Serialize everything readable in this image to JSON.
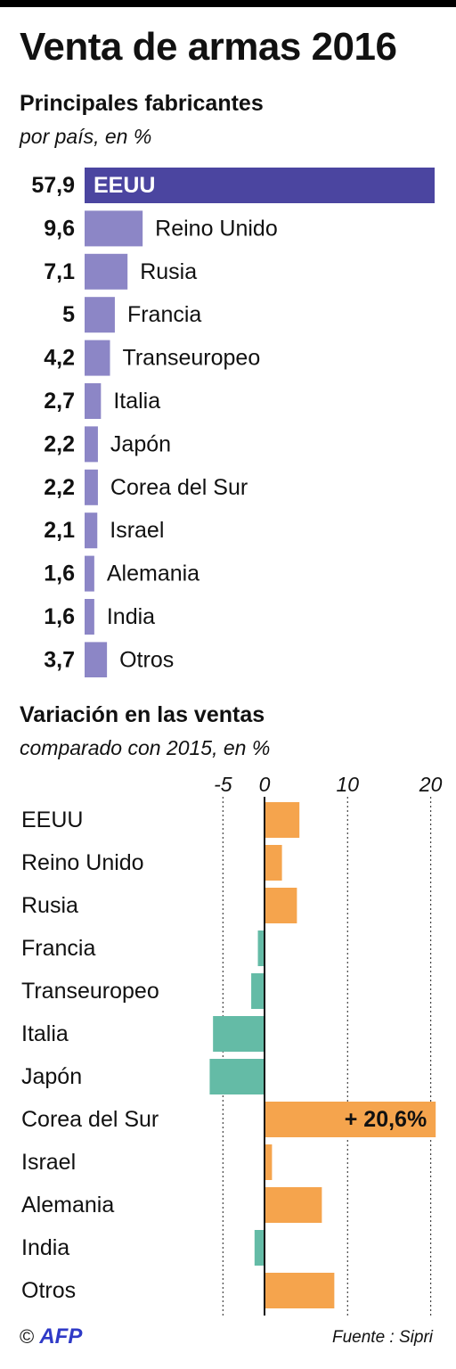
{
  "header": {
    "title": "Venta de armas 2016"
  },
  "colors": {
    "share_highlight": "#4b45a0",
    "share_bar": "#8c86c6",
    "variation_positive": "#f5a44d",
    "variation_negative": "#64bba6"
  },
  "chart_data": [
    {
      "type": "bar",
      "orientation": "horizontal",
      "title": "Principales fabricantes",
      "subtitle": "por país, en %",
      "categories": [
        "EEUU",
        "Reino Unido",
        "Rusia",
        "Francia",
        "Transeuropeo",
        "Italia",
        "Japón",
        "Corea del Sur",
        "Israel",
        "Alemania",
        "India",
        "Otros"
      ],
      "values": [
        57.9,
        9.6,
        7.1,
        5,
        4.2,
        2.7,
        2.2,
        2.2,
        2.1,
        1.6,
        1.6,
        3.7
      ],
      "value_labels": [
        "57,9",
        "9,6",
        "7,1",
        "5",
        "4,2",
        "2,7",
        "2,2",
        "2,2",
        "2,1",
        "1,6",
        "1,6",
        "3,7"
      ],
      "grid": false
    },
    {
      "type": "bar",
      "orientation": "horizontal",
      "title": "Variación en las ventas",
      "subtitle": "comparado con 2015, en %",
      "categories": [
        "EEUU",
        "Reino Unido",
        "Rusia",
        "Francia",
        "Transeuropeo",
        "Italia",
        "Japón",
        "Corea del Sur",
        "Israel",
        "Alemania",
        "India",
        "Otros"
      ],
      "values": [
        4.2,
        2.1,
        3.9,
        -0.8,
        -1.6,
        -6.2,
        -6.6,
        20.6,
        0.9,
        6.9,
        -1.2,
        8.4
      ],
      "annotation": {
        "category": "Corea del Sur",
        "text": "+ 20,6%"
      },
      "xlim": [
        -6.6,
        21
      ],
      "xticks": [
        -5,
        0,
        10,
        20
      ],
      "xtick_labels": [
        "-5",
        "0",
        "10",
        "20"
      ],
      "grid": true
    }
  ],
  "footer": {
    "credit_symbol": "©",
    "credit_logo": "AFP",
    "source": "Fuente : Sipri"
  }
}
